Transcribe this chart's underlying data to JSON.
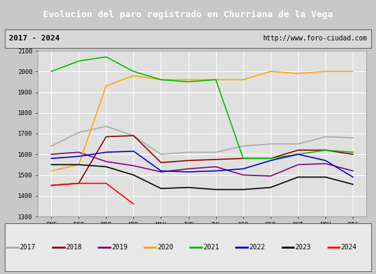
{
  "title": "Evolucion del paro registrado en Churriana de la Vega",
  "subtitle_left": "2017 - 2024",
  "subtitle_right": "http://www.foro-ciudad.com",
  "ylim": [
    1300,
    2100
  ],
  "months": [
    "ENE",
    "FEB",
    "MAR",
    "ABR",
    "MAY",
    "JUN",
    "JUL",
    "AGO",
    "SEP",
    "OCT",
    "NOV",
    "DIC"
  ],
  "series": {
    "2017": {
      "color": "#aaaaaa",
      "data": [
        1640,
        1705,
        1735,
        1690,
        1600,
        1610,
        1610,
        1640,
        1650,
        1650,
        1685,
        1680
      ]
    },
    "2018": {
      "color": "#8b0000",
      "data": [
        1450,
        1460,
        1685,
        1690,
        1560,
        1570,
        1575,
        1580,
        1580,
        1620,
        1620,
        1600
      ]
    },
    "2019": {
      "color": "#800080",
      "data": [
        1600,
        1610,
        1565,
        1545,
        1515,
        1530,
        1540,
        1500,
        1495,
        1550,
        1555,
        1520
      ]
    },
    "2020": {
      "color": "#ffa500",
      "data": [
        1520,
        1550,
        1930,
        1980,
        1960,
        1960,
        1960,
        1960,
        2000,
        1990,
        2000,
        2000
      ]
    },
    "2021": {
      "color": "#00bb00",
      "data": [
        2000,
        2050,
        2070,
        2000,
        1960,
        1950,
        1960,
        1580,
        1580,
        1600,
        1620,
        1610
      ]
    },
    "2022": {
      "color": "#0000cc",
      "data": [
        1580,
        1590,
        1610,
        1615,
        1520,
        1515,
        1520,
        1530,
        1570,
        1600,
        1570,
        1490
      ]
    },
    "2023": {
      "color": "#000000",
      "data": [
        1550,
        1550,
        1540,
        1500,
        1435,
        1440,
        1430,
        1430,
        1440,
        1490,
        1490,
        1455
      ]
    },
    "2024": {
      "color": "#ff0000",
      "data": [
        1450,
        1460,
        1460,
        1360,
        null,
        null,
        null,
        null,
        null,
        null,
        null,
        null
      ]
    }
  },
  "fig_bg": "#c8c8c8",
  "title_bg": "#4169b0",
  "title_fg": "#ffffff",
  "subtitle_bg": "#d8d8d8",
  "plot_bg": "#e0e0e0",
  "legend_bg": "#e8e8e8",
  "grid_color": "#ffffff"
}
